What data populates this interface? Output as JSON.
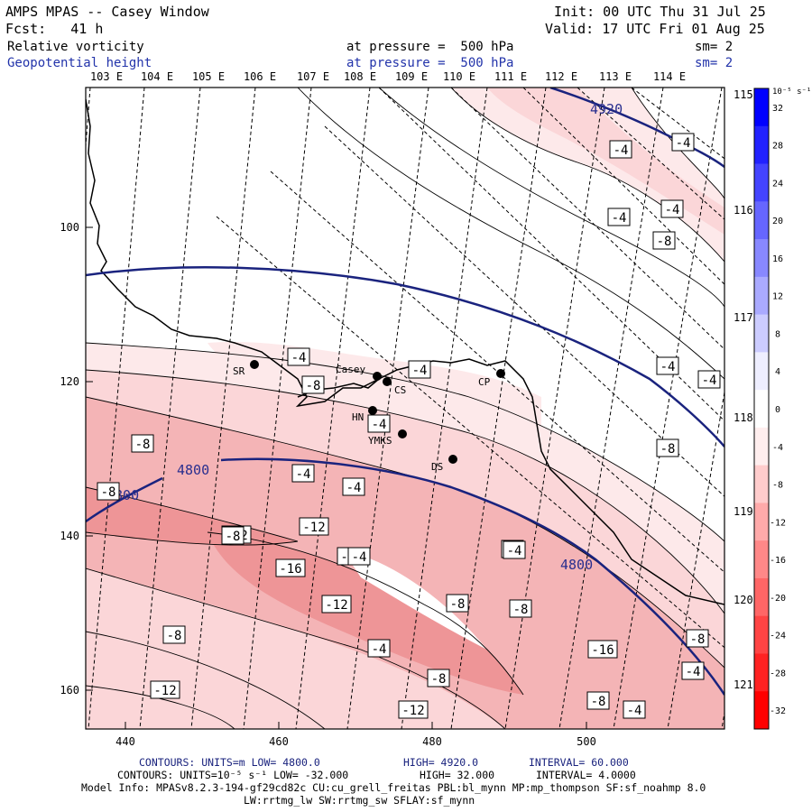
{
  "header": {
    "title": "AMPS MPAS -- Casey Window",
    "init": "Init: 00 UTC Thu 31 Jul 25",
    "fcst": "Fcst:   41 h",
    "valid": "Valid: 17 UTC Fri 01 Aug 25",
    "field1_name": "Relative vorticity",
    "field1_pressure": "at pressure =  500 hPa",
    "field1_sm": "sm= 2",
    "field2_name": "Geopotential height",
    "field2_pressure": "at pressure =  500 hPa",
    "field2_sm": "sm= 2"
  },
  "axes": {
    "top_lon_labels": [
      "103 E",
      "104 E",
      "105 E",
      "106 E",
      "107 E",
      "108 E",
      "109 E",
      "110 E",
      "111 E",
      "112 E",
      "113 E",
      "114 E"
    ],
    "right_lon_labels": [
      "115 E",
      "116 E",
      "117 E",
      "118 E",
      "119 E",
      "120 E",
      "121 E"
    ],
    "left_tick_labels": [
      "100",
      "120",
      "140",
      "160"
    ],
    "bottom_tick_labels": [
      "440",
      "460",
      "480",
      "500"
    ]
  },
  "colorbar": {
    "unit_label": "10⁻⁵ s⁻¹",
    "levels": [
      "32",
      "28",
      "24",
      "20",
      "16",
      "12",
      "8",
      "4",
      "0",
      "-4",
      "-8",
      "-12",
      "-16",
      "-20",
      "-24",
      "-28",
      "-32"
    ],
    "colors": [
      "#0000ff",
      "#2222ff",
      "#4444ff",
      "#6666ff",
      "#8888ff",
      "#aaaaff",
      "#ccccff",
      "#eeeeff",
      "#ffffff",
      "#ffeeee",
      "#ffcccc",
      "#ffaaaa",
      "#ff8888",
      "#ff6666",
      "#ff4444",
      "#ff2222",
      "#ff0000"
    ]
  },
  "stations": [
    {
      "label": "SR"
    },
    {
      "label": "Casey"
    },
    {
      "label": "CS"
    },
    {
      "label": "CP"
    },
    {
      "label": "HN"
    },
    {
      "label": "YMKS"
    },
    {
      "label": "DS"
    }
  ],
  "height_labels": [
    "4920",
    "4800",
    "4800",
    "4800"
  ],
  "vort_labels": [
    "-4",
    "-4",
    "-4",
    "-4",
    "-8",
    "-4",
    "-4",
    "-4",
    "-8",
    "-4",
    "-4",
    "-8",
    "-8",
    "-8",
    "-4",
    "-4",
    "-12",
    "-12",
    "-8",
    "-16",
    "-16",
    "-12",
    "-8",
    "-8",
    "-8",
    "-4",
    "-8",
    "-16",
    "-12",
    "-12",
    "-8",
    "-4",
    "-8",
    "-4",
    "-8",
    "-4",
    "-8",
    "-4"
  ],
  "footer": {
    "line1a": "CONTOURS:  UNITS=m  LOW=  4800.0",
    "line1b": "HIGH=  4920.0",
    "line1c": "INTERVAL=   60.000",
    "line2a": "CONTOURS:  UNITS=10⁻⁵ s⁻¹  LOW= -32.000",
    "line2b": "HIGH=  32.000",
    "line2c": "INTERVAL=   4.0000",
    "line3": "Model Info: MPASv8.2.3-194-gf29cd82c CU:cu_grell_freitas PBL:bl_mynn MP:mp_thompson SF:sf_noahmp 8.0",
    "line4": "LW:rrtmg_lw SW:rrtmg_sw SFLAY:sf_mynn"
  }
}
